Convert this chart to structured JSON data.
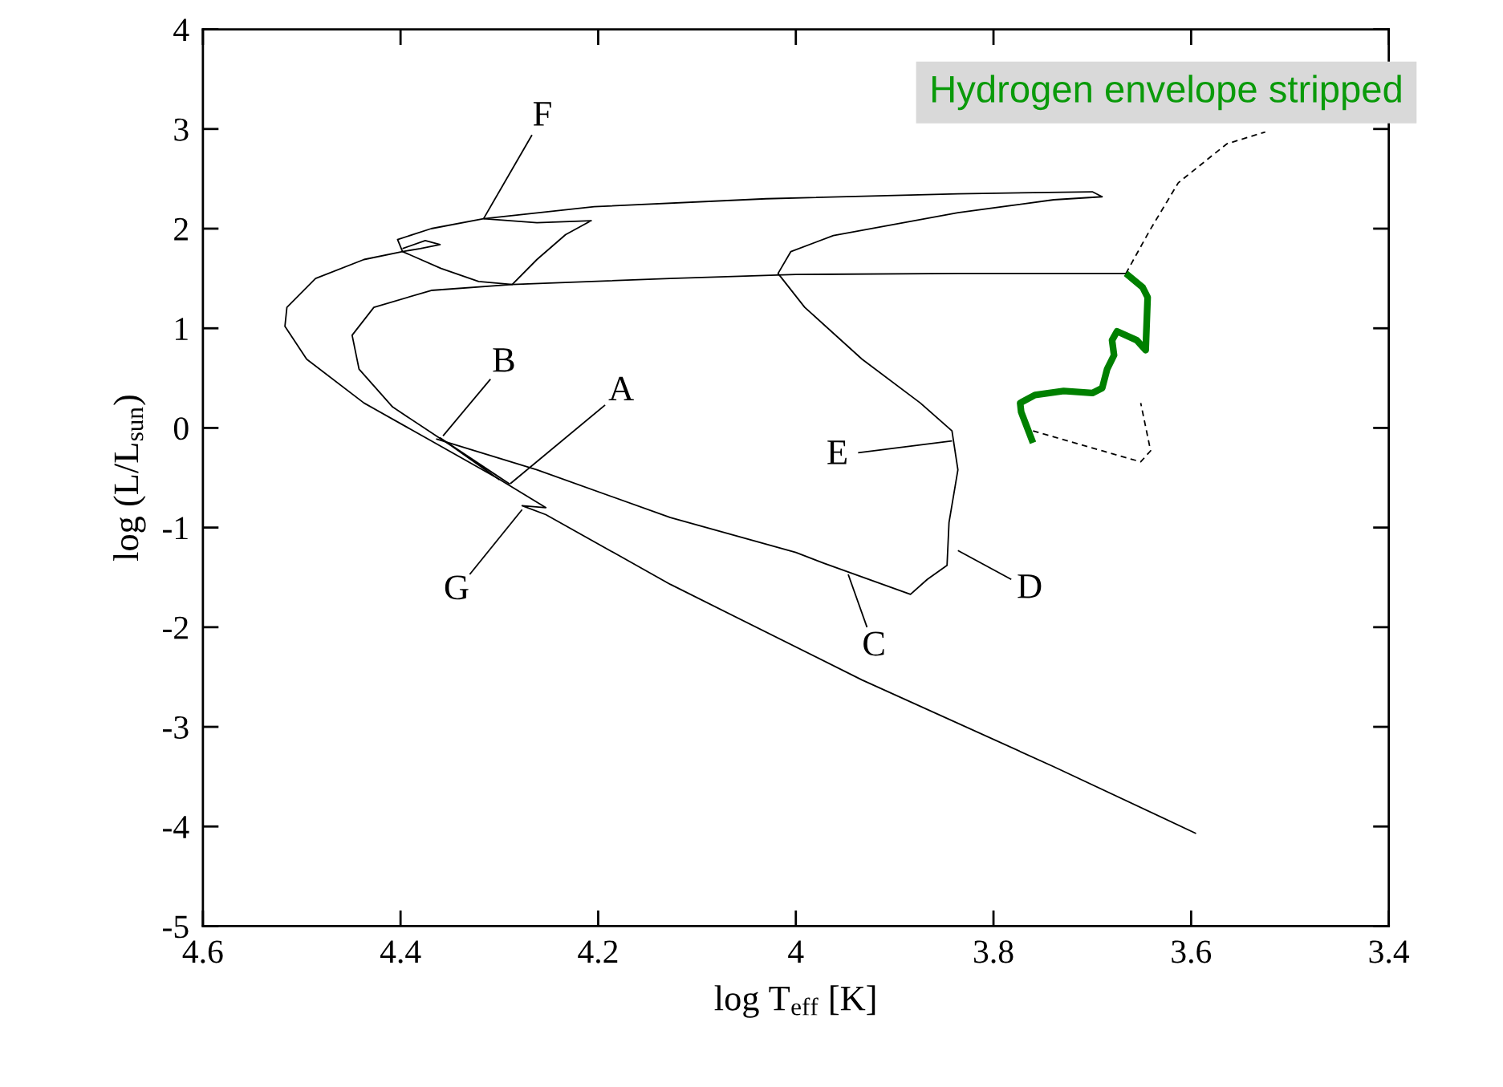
{
  "chart_data": {
    "type": "line",
    "xlabel": "log T$_{eff}$ [K]",
    "ylabel": "log (L/L$_{sun}$)",
    "xlim": [
      4.6,
      3.4
    ],
    "xticks": [
      4.6,
      4.4,
      4.2,
      4,
      3.8,
      3.6,
      3.4
    ],
    "ylim": [
      -5,
      4
    ],
    "yticks": [
      -5,
      -4,
      -3,
      -2,
      -1,
      0,
      1,
      2,
      3,
      4
    ],
    "grid": false,
    "legend": false,
    "marker": "none",
    "series": [
      {
        "color": "#000000",
        "line_style": "solid",
        "x": [
          4.364,
          4.262,
          4.127,
          4.0,
          3.971,
          3.884,
          3.867,
          3.847,
          3.845,
          3.836,
          3.842,
          3.874,
          3.933,
          3.991,
          4.018,
          4.005,
          3.962,
          3.836,
          3.739,
          3.69,
          3.7,
          3.836,
          4.03,
          4.204,
          4.316,
          4.369,
          4.403,
          4.398,
          4.38,
          4.36,
          4.375,
          4.398
        ],
        "values": [
          -0.11,
          -0.42,
          -0.9,
          -1.25,
          -1.36,
          -1.67,
          -1.52,
          -1.38,
          -0.95,
          -0.42,
          -0.03,
          0.25,
          0.69,
          1.21,
          1.55,
          1.77,
          1.93,
          2.16,
          2.29,
          2.32,
          2.37,
          2.35,
          2.3,
          2.22,
          2.1,
          2.0,
          1.89,
          1.77,
          1.8,
          1.84,
          1.88,
          1.8
        ]
      },
      {
        "color": "#000000",
        "line_style": "solid",
        "x": [
          4.398,
          4.437,
          4.486,
          4.515,
          4.517,
          4.495,
          4.437,
          4.369,
          4.301,
          4.253,
          4.277,
          4.253,
          4.127,
          3.933,
          3.739,
          3.595
        ],
        "values": [
          1.77,
          1.69,
          1.5,
          1.21,
          1.02,
          0.69,
          0.25,
          -0.13,
          -0.51,
          -0.8,
          -0.78,
          -0.87,
          -1.57,
          -2.53,
          -3.4,
          -4.07
        ]
      },
      {
        "color": "#000000",
        "line_style": "solid",
        "x": [
          4.398,
          4.359,
          4.321,
          4.287,
          4.262,
          4.233,
          4.207,
          4.262,
          4.316
        ],
        "values": [
          1.77,
          1.6,
          1.47,
          1.44,
          1.69,
          1.94,
          2.08,
          2.06,
          2.1
        ]
      },
      {
        "color": "#000000",
        "line_style": "solid",
        "x": [
          3.666,
          3.836,
          4.0,
          4.127,
          4.287,
          4.369,
          4.427,
          4.449,
          4.442,
          4.408,
          4.364,
          4.29,
          4.36,
          4.3
        ],
        "values": [
          1.55,
          1.55,
          1.54,
          1.5,
          1.44,
          1.38,
          1.21,
          0.93,
          0.59,
          0.21,
          -0.08,
          -0.56,
          -0.1,
          -0.52
        ]
      },
      {
        "color": "#000000",
        "line_style": "dashed",
        "x": [
          3.666,
          3.642,
          3.613,
          3.564,
          3.525
        ],
        "values": [
          1.55,
          1.98,
          2.46,
          2.85,
          2.97
        ]
      },
      {
        "color": "#000000",
        "line_style": "dashed",
        "x": [
          3.76,
          3.69,
          3.651,
          3.641,
          3.651
        ],
        "values": [
          -0.03,
          -0.23,
          -0.34,
          -0.23,
          0.25
        ]
      },
      {
        "color": "#008000",
        "line_style": "solid",
        "x": [
          3.666,
          3.649,
          3.644,
          3.646,
          3.655,
          3.675,
          3.68,
          3.678,
          3.685,
          3.69,
          3.7,
          3.729,
          3.758,
          3.773,
          3.772,
          3.76
        ],
        "values": [
          1.55,
          1.41,
          1.31,
          0.78,
          0.88,
          0.97,
          0.88,
          0.73,
          0.59,
          0.4,
          0.35,
          0.37,
          0.33,
          0.25,
          0.16,
          -0.15
        ]
      },
      {
        "color": "#000000",
        "line_style": "solid",
        "x": [
          4.267,
          4.316
        ],
        "values": [
          2.94,
          2.1
        ]
      },
      {
        "color": "#000000",
        "line_style": "solid",
        "x": [
          4.309,
          4.357
        ],
        "values": [
          0.49,
          -0.08
        ]
      },
      {
        "color": "#000000",
        "line_style": "solid",
        "x": [
          4.193,
          4.289
        ],
        "values": [
          0.23,
          -0.56
        ]
      },
      {
        "color": "#000000",
        "line_style": "solid",
        "x": [
          4.33,
          4.277
        ],
        "values": [
          -1.47,
          -0.82
        ]
      },
      {
        "color": "#000000",
        "line_style": "solid",
        "x": [
          3.937,
          3.842
        ],
        "values": [
          -0.25,
          -0.13
        ]
      },
      {
        "color": "#000000",
        "line_style": "solid",
        "x": [
          3.782,
          3.836
        ],
        "values": [
          -1.52,
          -1.23
        ]
      },
      {
        "color": "#000000",
        "line_style": "solid",
        "x": [
          3.928,
          3.947
        ],
        "values": [
          -2.0,
          -1.47
        ]
      }
    ],
    "annotations": [
      {
        "text": "F",
        "x": 4.316,
        "y": 2.1
      },
      {
        "text": "B",
        "x": 4.357,
        "y": -0.08
      },
      {
        "text": "A",
        "x": 4.269,
        "y": -0.39
      },
      {
        "text": "G",
        "x": 4.277,
        "y": -0.82
      },
      {
        "text": "E",
        "x": 3.842,
        "y": -0.13
      },
      {
        "text": "D",
        "x": 3.836,
        "y": -1.23
      },
      {
        "text": "C",
        "x": 3.947,
        "y": -1.47
      },
      "Hydrogen envelope stripped"
    ]
  }
}
